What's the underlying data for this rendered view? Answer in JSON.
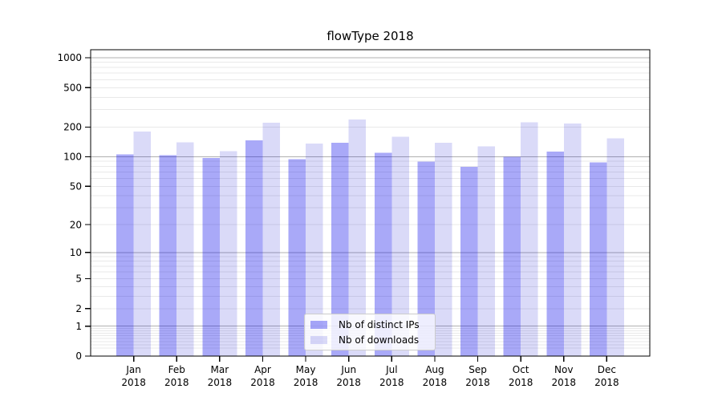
{
  "figure": {
    "background": "#ffffff"
  },
  "chart_data": {
    "type": "bar",
    "title": "flowType 2018",
    "categories": [
      "Jan",
      "Feb",
      "Mar",
      "Apr",
      "May",
      "Jun",
      "Jul",
      "Aug",
      "Sep",
      "Oct",
      "Nov",
      "Dec"
    ],
    "x_sublabel": "2018",
    "series": [
      {
        "name": "Nb of distinct IPs",
        "color_hex": "#a9a9f8",
        "color_rgba": "rgba(10,10,235,0.35)",
        "values": [
          106,
          104,
          97,
          147,
          95,
          139,
          110,
          89,
          79,
          100,
          113,
          88
        ]
      },
      {
        "name": "Nb of downloads",
        "color_hex": "#dadaf8",
        "color_rgba": "rgba(8,8,208,0.15)",
        "values": [
          181,
          140,
          114,
          222,
          136,
          238,
          160,
          139,
          128,
          224,
          218,
          154
        ]
      }
    ],
    "yscale": "log1p",
    "ylim": [
      0,
      1205
    ],
    "y_ticks": [
      0,
      1,
      2,
      5,
      10,
      20,
      50,
      100,
      200,
      500,
      1000
    ],
    "grid": {
      "major_values": [
        1,
        10,
        100,
        1000
      ],
      "major_color": "#b0b0b0",
      "minor_color": "#e9e9e9"
    },
    "legend": {
      "position": "lower-center"
    },
    "axis_color": "#000000"
  }
}
